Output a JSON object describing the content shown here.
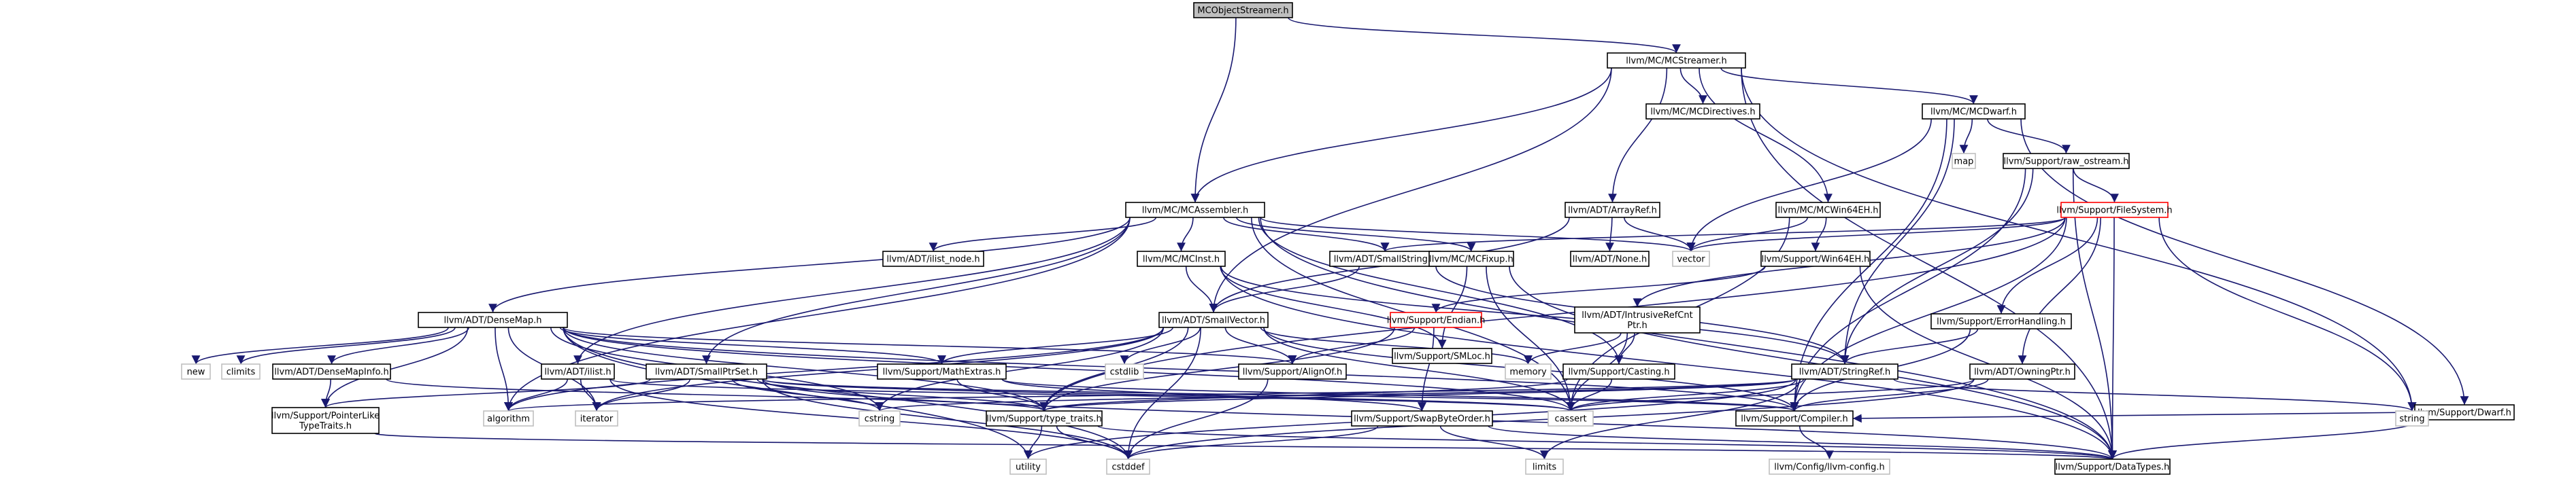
{
  "graph": {
    "colors": {
      "edge": "#191970",
      "box_border": "#000000",
      "root_fill": "#bfbfbf",
      "missing_border": "#bfbfbf",
      "truncated_border": "#ff0000",
      "fill": "#ffffff"
    },
    "nodes": [
      {
        "id": "root",
        "label": "MCObjectStreamer.h",
        "kind": "root"
      },
      {
        "id": "streamer",
        "label": "llvm/MC/MCStreamer.h",
        "kind": "header"
      },
      {
        "id": "assembler",
        "label": "llvm/MC/MCAssembler.h",
        "kind": "header"
      },
      {
        "id": "directives",
        "label": "llvm/MC/MCDirectives.h",
        "kind": "header"
      },
      {
        "id": "dwarf",
        "label": "llvm/MC/MCDwarf.h",
        "kind": "header"
      },
      {
        "id": "win64eh",
        "label": "llvm/MC/MCWin64EH.h",
        "kind": "header"
      },
      {
        "id": "arrayref",
        "label": "llvm/ADT/ArrayRef.h",
        "kind": "header"
      },
      {
        "id": "map",
        "label": "map",
        "kind": "system"
      },
      {
        "id": "raw_ostream",
        "label": "llvm/Support/raw_ostream.h",
        "kind": "header"
      },
      {
        "id": "filesystem",
        "label": "llvm/Support/FileSystem.h",
        "kind": "truncated"
      },
      {
        "id": "sdwarf",
        "label": "llvm/Support/Dwarf.h",
        "kind": "header"
      },
      {
        "id": "ilist_node",
        "label": "llvm/ADT/ilist_node.h",
        "kind": "header"
      },
      {
        "id": "mcinst",
        "label": "llvm/MC/MCInst.h",
        "kind": "header"
      },
      {
        "id": "smallstring",
        "label": "llvm/ADT/SmallString.h",
        "kind": "header"
      },
      {
        "id": "mcfixup",
        "label": "llvm/MC/MCFixup.h",
        "kind": "header"
      },
      {
        "id": "vector",
        "label": "vector",
        "kind": "system"
      },
      {
        "id": "none",
        "label": "llvm/ADT/None.h",
        "kind": "header"
      },
      {
        "id": "win64ehs",
        "label": "llvm/Support/Win64EH.h",
        "kind": "header"
      },
      {
        "id": "densemap",
        "label": "llvm/ADT/DenseMap.h",
        "kind": "header"
      },
      {
        "id": "smallvector",
        "label": "llvm/ADT/SmallVector.h",
        "kind": "header"
      },
      {
        "id": "endian",
        "label": "llvm/Support/Endian.h",
        "kind": "truncated"
      },
      {
        "id": "smloc",
        "label": "llvm/Support/SMLoc.h",
        "kind": "header"
      },
      {
        "id": "intrusive",
        "label": "llvm/ADT/IntrusiveRefCnt Ptr.h",
        "kind": "header",
        "lines": [
          "llvm/ADT/IntrusiveRefCnt",
          "Ptr.h"
        ]
      },
      {
        "id": "errorhandling",
        "label": "llvm/Support/ErrorHandling.h",
        "kind": "header"
      },
      {
        "id": "new",
        "label": "new",
        "kind": "system"
      },
      {
        "id": "climits",
        "label": "climits",
        "kind": "system"
      },
      {
        "id": "densemapinfo",
        "label": "llvm/ADT/DenseMapInfo.h",
        "kind": "header"
      },
      {
        "id": "ilist",
        "label": "llvm/ADT/ilist.h",
        "kind": "header"
      },
      {
        "id": "smallptrset",
        "label": "llvm/ADT/SmallPtrSet.h",
        "kind": "header"
      },
      {
        "id": "mathextras",
        "label": "llvm/Support/MathExtras.h",
        "kind": "header"
      },
      {
        "id": "cstdlib",
        "label": "cstdlib",
        "kind": "system"
      },
      {
        "id": "alignof",
        "label": "llvm/Support/AlignOf.h",
        "kind": "header"
      },
      {
        "id": "memory",
        "label": "memory",
        "kind": "system"
      },
      {
        "id": "casting",
        "label": "llvm/Support/Casting.h",
        "kind": "header"
      },
      {
        "id": "stringref",
        "label": "llvm/ADT/StringRef.h",
        "kind": "header"
      },
      {
        "id": "owningptr",
        "label": "llvm/ADT/OwningPtr.h",
        "kind": "header"
      },
      {
        "id": "ptrtraits",
        "label": "llvm/Support/PointerLike TypeTraits.h",
        "kind": "header",
        "lines": [
          "llvm/Support/PointerLike",
          "TypeTraits.h"
        ]
      },
      {
        "id": "algorithm",
        "label": "algorithm",
        "kind": "system"
      },
      {
        "id": "iterator",
        "label": "iterator",
        "kind": "system"
      },
      {
        "id": "cstring",
        "label": "cstring",
        "kind": "system"
      },
      {
        "id": "typetraits",
        "label": "llvm/Support/type_traits.h",
        "kind": "header"
      },
      {
        "id": "swapbyteorder",
        "label": "llvm/Support/SwapByteOrder.h",
        "kind": "header"
      },
      {
        "id": "cassert",
        "label": "cassert",
        "kind": "system"
      },
      {
        "id": "compiler",
        "label": "llvm/Support/Compiler.h",
        "kind": "header"
      },
      {
        "id": "string",
        "label": "string",
        "kind": "system"
      },
      {
        "id": "utility",
        "label": "utility",
        "kind": "system"
      },
      {
        "id": "cstddef",
        "label": "cstddef",
        "kind": "system"
      },
      {
        "id": "limits",
        "label": "limits",
        "kind": "system"
      },
      {
        "id": "llvmconfig",
        "label": "llvm/Config/llvm-config.h",
        "kind": "system"
      },
      {
        "id": "datatypes",
        "label": "llvm/Support/DataTypes.h",
        "kind": "header"
      }
    ],
    "edges": [
      [
        "root",
        "streamer"
      ],
      [
        "root",
        "assembler"
      ],
      [
        "streamer",
        "assembler"
      ],
      [
        "streamer",
        "directives"
      ],
      [
        "streamer",
        "dwarf"
      ],
      [
        "streamer",
        "win64eh"
      ],
      [
        "streamer",
        "arrayref"
      ],
      [
        "streamer",
        "smallvector"
      ],
      [
        "streamer",
        "string"
      ],
      [
        "streamer",
        "datatypes"
      ],
      [
        "dwarf",
        "map"
      ],
      [
        "dwarf",
        "raw_ostream"
      ],
      [
        "dwarf",
        "sdwarf"
      ],
      [
        "dwarf",
        "vector"
      ],
      [
        "dwarf",
        "stringref"
      ],
      [
        "dwarf",
        "compiler"
      ],
      [
        "raw_ostream",
        "filesystem"
      ],
      [
        "raw_ostream",
        "stringref"
      ],
      [
        "raw_ostream",
        "compiler"
      ],
      [
        "raw_ostream",
        "datatypes"
      ],
      [
        "filesystem",
        "smallstring"
      ],
      [
        "filesystem",
        "intrusive"
      ],
      [
        "filesystem",
        "errorhandling"
      ],
      [
        "filesystem",
        "owningptr"
      ],
      [
        "filesystem",
        "typetraits"
      ],
      [
        "filesystem",
        "string"
      ],
      [
        "filesystem",
        "vector"
      ],
      [
        "filesystem",
        "datatypes"
      ],
      [
        "filesystem",
        "compiler"
      ],
      [
        "sdwarf",
        "compiler"
      ],
      [
        "sdwarf",
        "datatypes"
      ],
      [
        "win64eh",
        "win64ehs"
      ],
      [
        "win64eh",
        "vector"
      ],
      [
        "win64eh",
        "cassert"
      ],
      [
        "arrayref",
        "none"
      ],
      [
        "arrayref",
        "smallvector"
      ],
      [
        "arrayref",
        "vector"
      ],
      [
        "assembler",
        "ilist_node"
      ],
      [
        "assembler",
        "mcinst"
      ],
      [
        "assembler",
        "smallstring"
      ],
      [
        "assembler",
        "mcfixup"
      ],
      [
        "assembler",
        "densemap"
      ],
      [
        "assembler",
        "smallptrset"
      ],
      [
        "assembler",
        "ilist"
      ],
      [
        "assembler",
        "vector"
      ],
      [
        "assembler",
        "casting"
      ],
      [
        "assembler",
        "datatypes"
      ],
      [
        "assembler",
        "algorithm"
      ],
      [
        "assembler",
        "cassert"
      ],
      [
        "mcinst",
        "smallvector"
      ],
      [
        "mcinst",
        "stringref"
      ],
      [
        "mcinst",
        "smloc"
      ],
      [
        "mcinst",
        "datatypes"
      ],
      [
        "smallstring",
        "smallvector"
      ],
      [
        "smallstring",
        "stringref"
      ],
      [
        "mcfixup",
        "smloc"
      ],
      [
        "mcfixup",
        "datatypes"
      ],
      [
        "mcfixup",
        "cassert"
      ],
      [
        "win64ehs",
        "datatypes"
      ],
      [
        "win64ehs",
        "endian"
      ],
      [
        "densemap",
        "new"
      ],
      [
        "densemap",
        "climits"
      ],
      [
        "densemap",
        "densemapinfo"
      ],
      [
        "densemap",
        "mathextras"
      ],
      [
        "densemap",
        "ptrtraits"
      ],
      [
        "densemap",
        "typetraits"
      ],
      [
        "densemap",
        "algorithm"
      ],
      [
        "densemap",
        "iterator"
      ],
      [
        "densemap",
        "cstring"
      ],
      [
        "densemap",
        "cassert"
      ],
      [
        "densemap",
        "utility"
      ],
      [
        "densemap",
        "cstddef"
      ],
      [
        "densemap",
        "compiler"
      ],
      [
        "densemap",
        "alignof"
      ],
      [
        "densemapinfo",
        "ptrtraits"
      ],
      [
        "densemapinfo",
        "typetraits"
      ],
      [
        "smallvector",
        "alignof"
      ],
      [
        "smallvector",
        "compiler"
      ],
      [
        "smallvector",
        "typetraits"
      ],
      [
        "smallvector",
        "algorithm"
      ],
      [
        "smallvector",
        "cassert"
      ],
      [
        "smallvector",
        "cstddef"
      ],
      [
        "smallvector",
        "cstdlib"
      ],
      [
        "smallvector",
        "cstring"
      ],
      [
        "smallvector",
        "iterator"
      ],
      [
        "smallvector",
        "memory"
      ],
      [
        "smallvector",
        "mathextras"
      ],
      [
        "endian",
        "alignof"
      ],
      [
        "endian",
        "swapbyteorder"
      ],
      [
        "endian",
        "typetraits"
      ],
      [
        "intrusive",
        "memory"
      ],
      [
        "intrusive",
        "casting"
      ],
      [
        "intrusive",
        "cassert"
      ],
      [
        "errorhandling",
        "stringref"
      ],
      [
        "errorhandling",
        "compiler"
      ],
      [
        "ilist",
        "algorithm"
      ],
      [
        "ilist",
        "cassert"
      ],
      [
        "ilist",
        "cstddef"
      ],
      [
        "ilist",
        "iterator"
      ],
      [
        "smallptrset",
        "ptrtraits"
      ],
      [
        "smallptrset",
        "typetraits"
      ],
      [
        "smallptrset",
        "cassert"
      ],
      [
        "smallptrset",
        "cstddef"
      ],
      [
        "smallptrset",
        "cstring"
      ],
      [
        "smallptrset",
        "iterator"
      ],
      [
        "smallptrset",
        "compiler"
      ],
      [
        "smallptrset",
        "datatypes"
      ],
      [
        "mathextras",
        "swapbyteorder"
      ],
      [
        "mathextras",
        "compiler"
      ],
      [
        "mathextras",
        "typetraits"
      ],
      [
        "alignof",
        "cstddef"
      ],
      [
        "casting",
        "typetraits"
      ],
      [
        "casting",
        "cassert"
      ],
      [
        "stringref",
        "algorithm"
      ],
      [
        "stringref",
        "cassert"
      ],
      [
        "stringref",
        "cstring"
      ],
      [
        "stringref",
        "limits"
      ],
      [
        "stringref",
        "string"
      ],
      [
        "stringref",
        "utility"
      ],
      [
        "stringref",
        "typetraits"
      ],
      [
        "owningptr",
        "compiler"
      ],
      [
        "owningptr",
        "cassert"
      ],
      [
        "owningptr",
        "cstddef"
      ],
      [
        "ptrtraits",
        "datatypes"
      ],
      [
        "typetraits",
        "datatypes"
      ],
      [
        "typetraits",
        "cstddef"
      ],
      [
        "typetraits",
        "utility"
      ],
      [
        "swapbyteorder",
        "cstddef"
      ],
      [
        "swapbyteorder",
        "limits"
      ],
      [
        "swapbyteorder",
        "datatypes"
      ],
      [
        "compiler",
        "llvmconfig"
      ]
    ]
  }
}
